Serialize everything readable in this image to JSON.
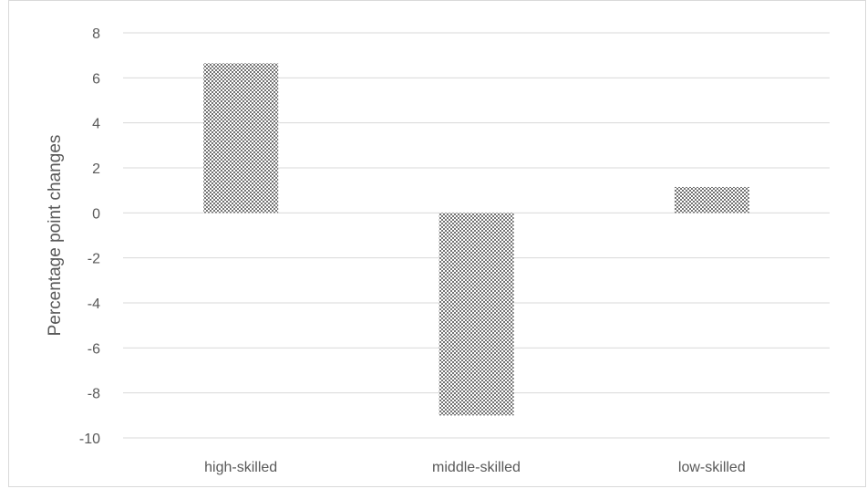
{
  "chart_data": {
    "type": "bar",
    "title": "",
    "xlabel": "",
    "ylabel": "Percentage point changes",
    "categories": [
      "high-skilled",
      "middle-skilled",
      "low-skilled"
    ],
    "values": [
      6.65,
      -9.0,
      1.15
    ],
    "ylim": [
      -10,
      8
    ],
    "yticks": [
      8,
      6,
      4,
      2,
      0,
      -2,
      -4,
      -6,
      -8,
      -10
    ],
    "grid": true,
    "legend": "none",
    "bar_pattern": "dotted",
    "colors": {
      "bar_fill": "#ffffff",
      "bar_dots": "#3a3a3a",
      "gridline": "#d9d9d9",
      "text": "#595959"
    }
  }
}
